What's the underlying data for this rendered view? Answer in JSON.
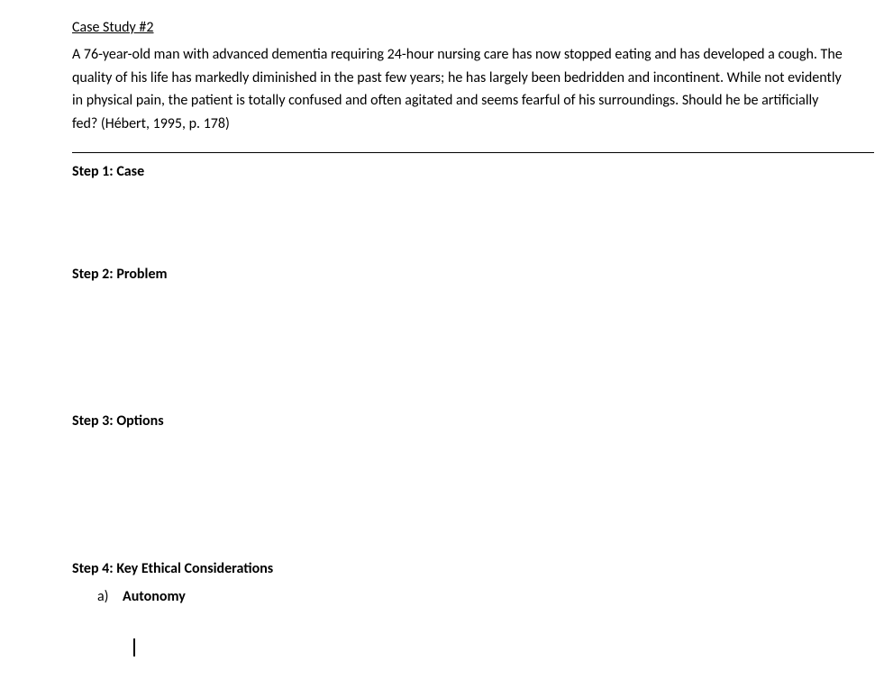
{
  "document": {
    "title": "Case Study #2",
    "body": "A 76-year-old man with advanced dementia requiring 24-hour nursing care has now stopped eating and has developed a cough. The quality of his life has markedly diminished in the past few years; he has largely been bedridden and incontinent. While not evidently in physical pain, the patient is totally confused and often agitated and seems fearful of his surroundings. Should he be artificially fed? (Hébert, 1995, p. 178)",
    "steps": {
      "step1": "Step 1: Case",
      "step2": "Step 2: Problem",
      "step3": "Step 3: Options",
      "step4": "Step 4: Key Ethical Considerations"
    },
    "sub_item": {
      "marker": "a)",
      "label": "Autonomy"
    }
  },
  "colors": {
    "text": "#000000",
    "background": "#ffffff",
    "divider": "#000000"
  },
  "typography": {
    "font_family": "Calibri",
    "body_fontsize": 16,
    "heading_weight": "bold",
    "line_height": 1.6
  }
}
